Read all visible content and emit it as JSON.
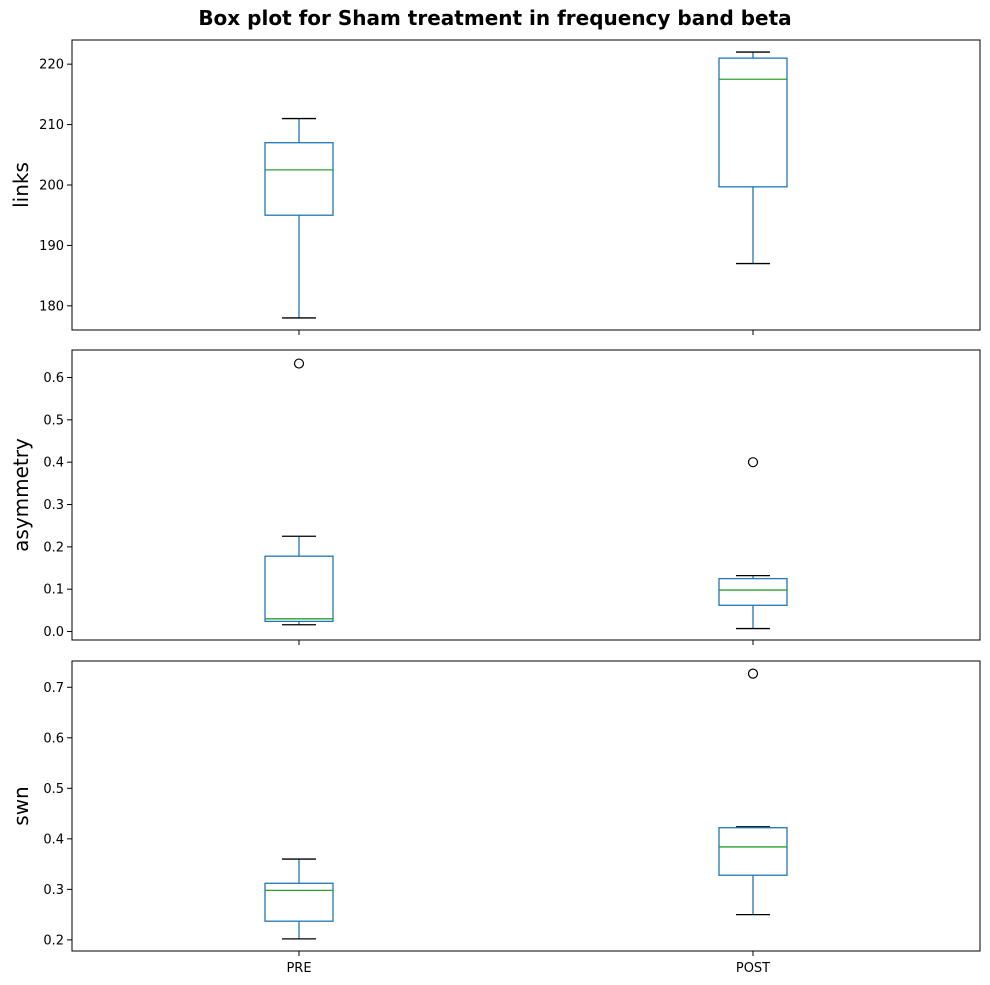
{
  "title": "Box plot for Sham treatment in frequency band beta",
  "colors": {
    "box": "#1f77b4",
    "median": "#2ca02c",
    "whisker": "#1f77b4",
    "cap": "#000000",
    "flier": "#000000"
  },
  "chart_data": [
    {
      "type": "box",
      "ylabel": "links",
      "categories": [
        "PRE",
        "POST"
      ],
      "ylim": [
        176,
        224
      ],
      "yticks": [
        180,
        190,
        200,
        210,
        220
      ],
      "boxes": [
        {
          "category": "PRE",
          "whislo": 178,
          "q1": 195,
          "med": 202.5,
          "q3": 207,
          "whishi": 211,
          "fliers": []
        },
        {
          "category": "POST",
          "whislo": 187,
          "q1": 199.7,
          "med": 217.5,
          "q3": 221,
          "whishi": 222,
          "fliers": []
        }
      ],
      "show_xticklabels": false
    },
    {
      "type": "box",
      "ylabel": "asymmetry",
      "categories": [
        "PRE",
        "POST"
      ],
      "ylim": [
        -0.02,
        0.665
      ],
      "yticks": [
        0.0,
        0.1,
        0.2,
        0.3,
        0.4,
        0.5,
        0.6
      ],
      "ytick_labels": [
        "0.0",
        "0.1",
        "0.2",
        "0.3",
        "0.4",
        "0.5",
        "0.6"
      ],
      "boxes": [
        {
          "category": "PRE",
          "whislo": 0.016,
          "q1": 0.024,
          "med": 0.03,
          "q3": 0.178,
          "whishi": 0.225,
          "fliers": [
            0.633
          ]
        },
        {
          "category": "POST",
          "whislo": 0.007,
          "q1": 0.062,
          "med": 0.098,
          "q3": 0.125,
          "whishi": 0.132,
          "fliers": [
            0.4
          ]
        }
      ],
      "show_xticklabels": false
    },
    {
      "type": "box",
      "ylabel": "swn",
      "categories": [
        "PRE",
        "POST"
      ],
      "ylim": [
        0.178,
        0.752
      ],
      "yticks": [
        0.2,
        0.3,
        0.4,
        0.5,
        0.6,
        0.7
      ],
      "ytick_labels": [
        "0.2",
        "0.3",
        "0.4",
        "0.5",
        "0.6",
        "0.7"
      ],
      "boxes": [
        {
          "category": "PRE",
          "whislo": 0.202,
          "q1": 0.237,
          "med": 0.298,
          "q3": 0.312,
          "whishi": 0.36,
          "fliers": []
        },
        {
          "category": "POST",
          "whislo": 0.25,
          "q1": 0.328,
          "med": 0.384,
          "q3": 0.422,
          "whishi": 0.424,
          "fliers": [
            0.727
          ]
        }
      ],
      "show_xticklabels": true
    }
  ]
}
